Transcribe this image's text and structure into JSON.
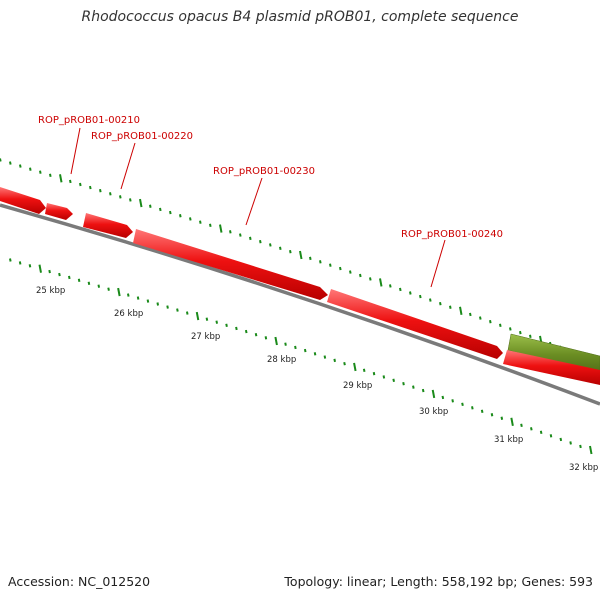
{
  "title": "Rhodococcus opacus B4 plasmid pROB01, complete sequence",
  "footer": {
    "accession": "Accession: NC_012520",
    "summary": "Topology: linear; Length: 558,192 bp; Genes: 593"
  },
  "genes": [
    {
      "label": "ROP_pROB01-00210"
    },
    {
      "label": "ROP_pROB01-00220"
    },
    {
      "label": "ROP_pROB01-00230"
    },
    {
      "label": "ROP_pROB01-00240"
    }
  ],
  "scale_labels": [
    "25 kbp",
    "26 kbp",
    "27 kbp",
    "28 kbp",
    "29 kbp",
    "30 kbp",
    "31 kbp",
    "32 kbp"
  ],
  "colors": {
    "gene_fill": "#ee1111",
    "gene_highlight": "#ff6a6a",
    "rna_fill": "#6b8e23",
    "backbone": "#7a7a7a",
    "ticks": "#1a8a1a",
    "gene_label": "#cc0000"
  }
}
